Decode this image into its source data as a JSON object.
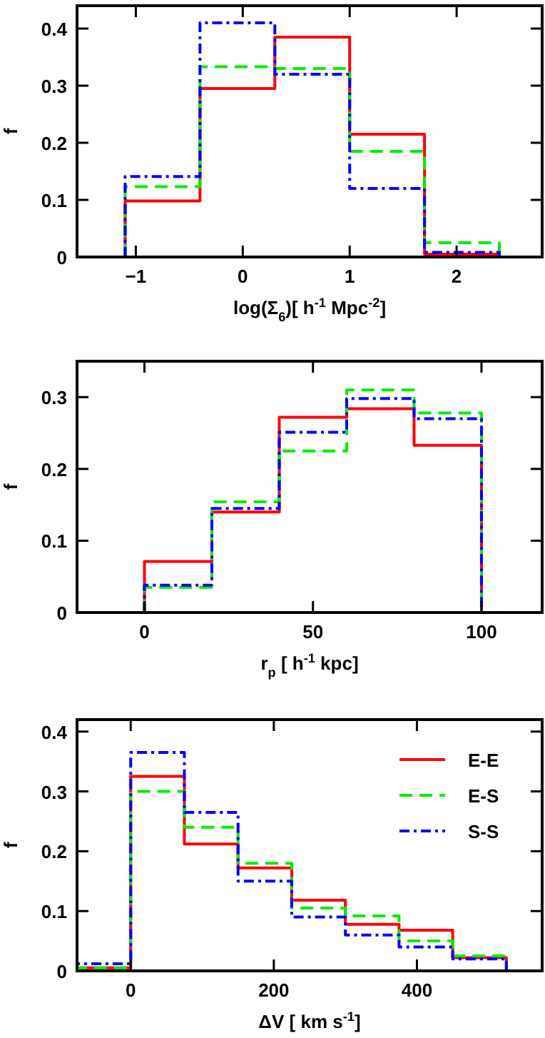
{
  "chart_data": [
    {
      "type": "histogram",
      "xlabel": "log(Σ$_{6}$)[ h$^{-1}$  Mpc$^{-2}$]",
      "ylabel": "f",
      "bins": [
        -1.1,
        -0.4,
        0.3,
        1.0,
        1.7,
        2.4
      ],
      "xlim": [
        -1.55,
        2.8
      ],
      "ylim": [
        0,
        0.44
      ],
      "xticks": [
        -1,
        0,
        1,
        2
      ],
      "yticks": [
        0,
        0.1,
        0.2,
        0.3,
        0.4
      ],
      "legend": false,
      "series": [
        {
          "color": "#ff0000",
          "line_style": "solid",
          "values": [
            0.098,
            0.295,
            0.385,
            0.215,
            0.005
          ]
        },
        {
          "color": "#00ee00",
          "line_style": "dashed",
          "values": [
            0.123,
            0.333,
            0.33,
            0.185,
            0.025
          ]
        },
        {
          "color": "#0000ff",
          "line_style": "dashdot",
          "values": [
            0.141,
            0.41,
            0.32,
            0.12,
            0.008
          ]
        }
      ]
    },
    {
      "type": "histogram",
      "xlabel": "r$_{p}$ [ h$^{-1}$  kpc]",
      "ylabel": "f",
      "bins": [
        0,
        20,
        40,
        60,
        80,
        100
      ],
      "xlim": [
        -20,
        118
      ],
      "ylim": [
        0,
        0.35
      ],
      "xticks": [
        0,
        50,
        100
      ],
      "yticks": [
        0,
        0.1,
        0.2,
        0.3
      ],
      "legend": false,
      "series": [
        {
          "color": "#ff0000",
          "line_style": "solid",
          "values": [
            0.071,
            0.14,
            0.272,
            0.284,
            0.233
          ]
        },
        {
          "color": "#00ee00",
          "line_style": "dashed",
          "values": [
            0.035,
            0.154,
            0.225,
            0.31,
            0.278
          ]
        },
        {
          "color": "#0000ff",
          "line_style": "dashdot",
          "values": [
            0.038,
            0.145,
            0.251,
            0.298,
            0.27
          ]
        }
      ]
    },
    {
      "type": "histogram",
      "xlabel": "ΔV [ km  s$^{-1}$]",
      "ylabel": "f",
      "bins": [
        -75,
        0,
        75,
        150,
        225,
        300,
        375,
        450,
        525
      ],
      "xlim": [
        -75,
        575
      ],
      "ylim": [
        0,
        0.42
      ],
      "xticks": [
        0,
        200,
        400
      ],
      "yticks": [
        0,
        0.1,
        0.2,
        0.3,
        0.4
      ],
      "legend": "top right",
      "series": [
        {
          "name": "E-E",
          "color": "#ff0000",
          "line_style": "solid",
          "values": [
            0.005,
            0.325,
            0.212,
            0.172,
            0.118,
            0.078,
            0.068,
            0.022
          ]
        },
        {
          "name": "E-S",
          "color": "#00ee00",
          "line_style": "dashed",
          "values": [
            0.005,
            0.3,
            0.24,
            0.18,
            0.105,
            0.092,
            0.05,
            0.025
          ]
        },
        {
          "name": "S-S",
          "color": "#0000ff",
          "line_style": "dashdot",
          "values": [
            0.012,
            0.365,
            0.265,
            0.15,
            0.09,
            0.06,
            0.04,
            0.02
          ]
        }
      ]
    }
  ]
}
